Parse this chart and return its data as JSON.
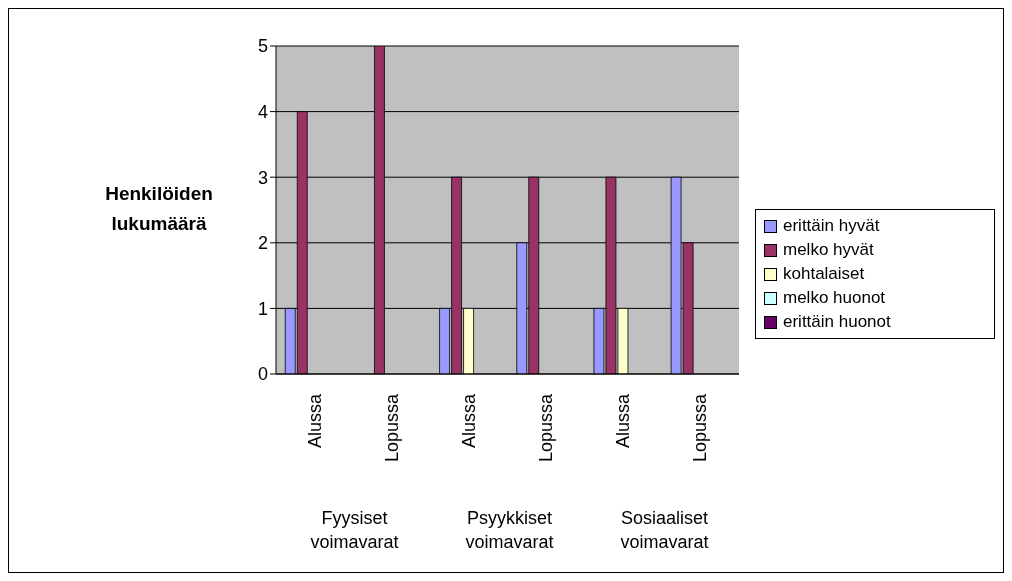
{
  "chart_data": {
    "type": "bar",
    "ylabel": "Henkilöiden lukumäärä",
    "categories": [
      "Alussa",
      "Lopussa",
      "Alussa",
      "Lopussa",
      "Alussa",
      "Lopussa"
    ],
    "annotations": [
      "Fyysiset voimavarat",
      "Psyykkiset voimavarat",
      "Sosiaaliset voimavarat"
    ],
    "series": [
      {
        "name": "erittäin hyvät",
        "color": "#9999ff",
        "values": [
          1,
          0,
          1,
          2,
          1,
          3
        ]
      },
      {
        "name": "melko hyvät",
        "color": "#993366",
        "values": [
          4,
          5,
          3,
          3,
          3,
          2
        ]
      },
      {
        "name": "kohtalaiset",
        "color": "#ffffcc",
        "values": [
          0,
          0,
          1,
          0,
          1,
          0
        ]
      },
      {
        "name": "melko huonot",
        "color": "#ccffff",
        "values": [
          0,
          0,
          0,
          0,
          0,
          0
        ]
      },
      {
        "name": "erittäin huonot",
        "color": "#660066",
        "values": [
          0,
          0,
          0,
          0,
          0,
          0
        ]
      }
    ],
    "ylim": [
      0,
      5
    ],
    "yticks": [
      0,
      1,
      2,
      3,
      4,
      5
    ],
    "grid": "y",
    "legend": "right"
  }
}
